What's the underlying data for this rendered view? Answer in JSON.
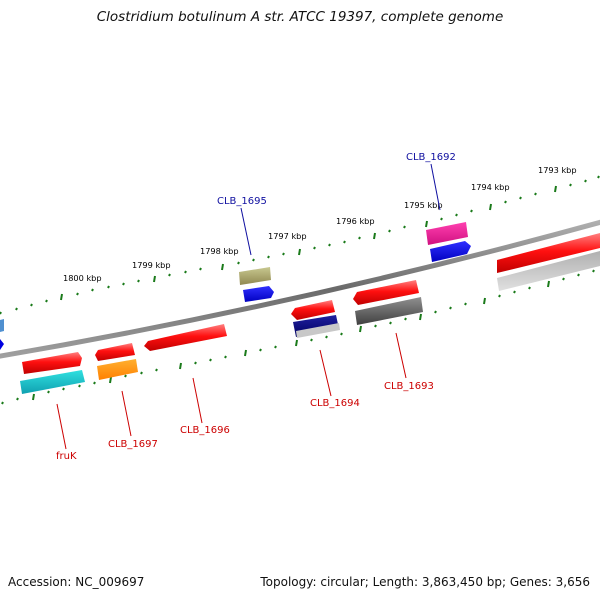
{
  "title": "Clostridium botulinum A str. ATCC 19397, complete genome",
  "footer": {
    "accession": "Accession: NC_009697",
    "topology": "Topology: circular; Length: 3,863,450 bp; Genes: 3,656"
  },
  "ruler_labels": [
    "1800 kbp",
    "1799 kbp",
    "1798 kbp",
    "1797 kbp",
    "1796 kbp",
    "1795 kbp",
    "1794 kbp",
    "1793 kbp"
  ],
  "gene_labels": {
    "clb_1692": "CLB_1692",
    "clb_1695": "CLB_1695",
    "fruk": "fruK",
    "clb_1697": "CLB_1697",
    "clb_1696": "CLB_1696",
    "clb_1694": "CLB_1694",
    "clb_1693": "CLB_1693"
  },
  "colors": {
    "forward_label": "#1010a0",
    "reverse_label": "#cc0000",
    "backbone": "#8a8a8a",
    "ticks": "#1a7a1a"
  }
}
